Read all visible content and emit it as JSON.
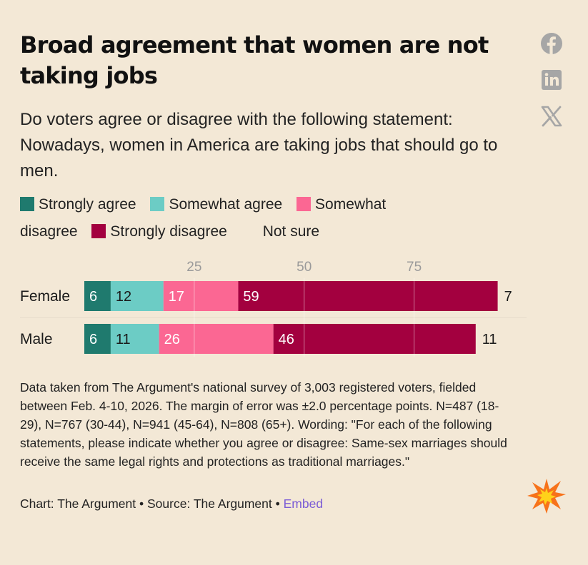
{
  "title": "Broad agreement that women are not taking jobs",
  "subtitle": "Do voters agree or disagree with the following statement: Nowadays, women in America are taking jobs that should go to men.",
  "social": [
    {
      "name": "facebook-icon"
    },
    {
      "name": "linkedin-icon"
    },
    {
      "name": "x-icon"
    }
  ],
  "colors": {
    "background": "#f3e8d6",
    "strongly_agree": "#1f7a6e",
    "somewhat_agree": "#6cccc5",
    "somewhat_disagree": "#fb6793",
    "strongly_disagree": "#a3003f",
    "embed_link": "#7b5cd6"
  },
  "legend": [
    {
      "label": "Strongly agree",
      "color": "#1f7a6e"
    },
    {
      "label": "Somewhat agree",
      "color": "#6cccc5"
    },
    {
      "label": "Somewhat disagree",
      "color": "#fb6793"
    },
    {
      "label": "Strongly disagree",
      "color": "#a3003f"
    },
    {
      "label": "Not sure",
      "color": ""
    }
  ],
  "chart_data": {
    "type": "bar",
    "orientation": "horizontal-stacked",
    "title": "Broad agreement that women are not taking jobs",
    "categories": [
      "Female",
      "Male"
    ],
    "series": [
      {
        "name": "Strongly agree",
        "values": [
          6,
          6
        ]
      },
      {
        "name": "Somewhat agree",
        "values": [
          12,
          11
        ]
      },
      {
        "name": "Somewhat disagree",
        "values": [
          17,
          26
        ]
      },
      {
        "name": "Strongly disagree",
        "values": [
          59,
          46
        ]
      },
      {
        "name": "Not sure",
        "values": [
          7,
          11
        ]
      }
    ],
    "xticks": [
      25,
      50,
      75
    ],
    "xlim": [
      0,
      100
    ],
    "grid": true,
    "legend_position": "top"
  },
  "source_note": "Data taken from The Argument's national survey of 3,003 registered voters, fielded between Feb. 4-10, 2026. The margin of error was ±2.0 percentage points. N=487 (18-29), N=767 (30-44), N=941 (45-64), N=808 (65+). Wording: \"For each of the following statements, please indicate whether you agree or disagree: Same-sex marriages should receive the same legal rights and protections as traditional marriages.\"",
  "credits": {
    "chart": "Chart: The Argument",
    "sep1": " • ",
    "source": "Source: The Argument",
    "sep2": " • ",
    "embed": "Embed"
  }
}
